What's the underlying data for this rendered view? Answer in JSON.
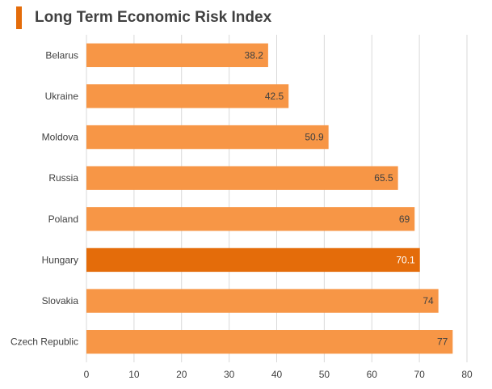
{
  "header": {
    "title": "Long Term Economic Risk Index",
    "accent_color": "#E46C0A"
  },
  "chart_data": {
    "type": "bar",
    "orientation": "horizontal",
    "title": "Long Term Economic Risk Index",
    "xlabel": "",
    "ylabel": "",
    "xlim": [
      0,
      80
    ],
    "ticks": [
      0,
      10,
      20,
      30,
      40,
      50,
      60,
      70,
      80
    ],
    "grid": true,
    "categories": [
      "Belarus",
      "Ukraine",
      "Moldova",
      "Russia",
      "Poland",
      "Hungary",
      "Slovakia",
      "Czech Republic"
    ],
    "values": [
      38.2,
      42.5,
      50.9,
      65.5,
      69,
      70.1,
      74,
      77
    ],
    "labels": [
      "38.2",
      "42.5",
      "50.9",
      "65.5",
      "69",
      "70.1",
      "74",
      "77"
    ],
    "highlight": "Hungary",
    "colors": {
      "bar": "#F79646",
      "highlight": "#E46C0A",
      "grid": "#D9D9D9",
      "label_dark": "#404040",
      "label_light": "#FFFFFF"
    }
  }
}
